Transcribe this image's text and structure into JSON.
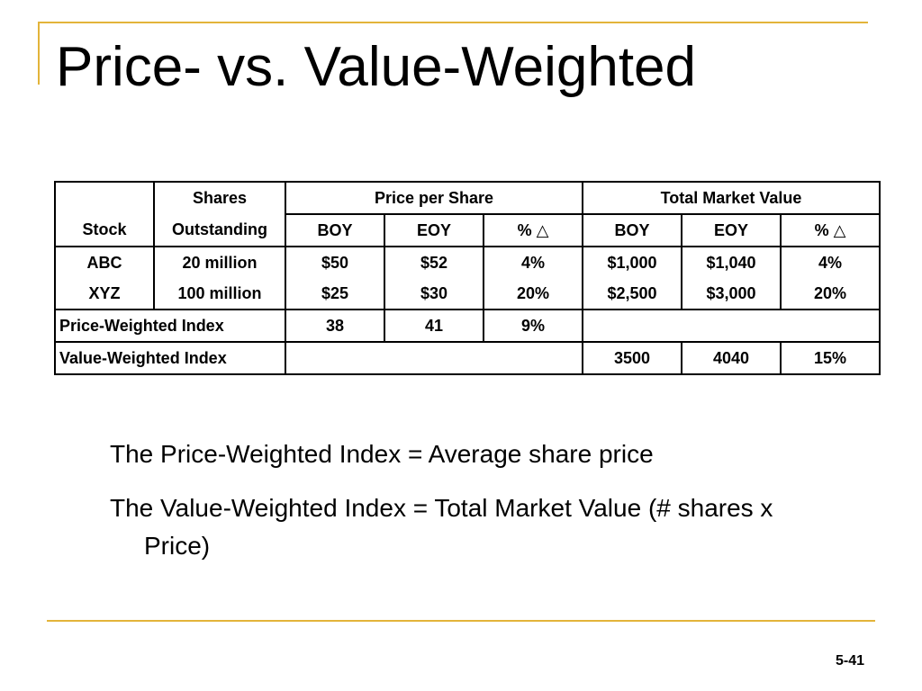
{
  "slide": {
    "title": "Price- vs. Value-Weighted",
    "page_number": "5-41",
    "accent_color": "#e3b43a"
  },
  "table": {
    "header": {
      "stock": "Stock",
      "shares_line1": "Shares",
      "shares_line2": "Outstanding",
      "price_group": "Price per Share",
      "value_group": "Total Market Value",
      "boy": "BOY",
      "eoy": "EOY",
      "pct_change": "% △"
    },
    "rows": [
      {
        "stock": "ABC",
        "shares": "20 million",
        "price_boy": "$50",
        "price_eoy": "$52",
        "price_pct": "4%",
        "value_boy": "$1,000",
        "value_eoy": "$1,040",
        "value_pct": "4%"
      },
      {
        "stock": "XYZ",
        "shares": "100 million",
        "price_boy": "$25",
        "price_eoy": "$30",
        "price_pct": "20%",
        "value_boy": "$2,500",
        "value_eoy": "$3,000",
        "value_pct": "20%"
      }
    ],
    "price_index": {
      "label": "Price-Weighted Index",
      "boy": "38",
      "eoy": "41",
      "pct": "9%"
    },
    "value_index": {
      "label": "Value-Weighted Index",
      "boy": "3500",
      "eoy": "4040",
      "pct": "15%"
    }
  },
  "bullets": [
    "The Price-Weighted Index = Average share price",
    "The Value-Weighted Index = Total Market Value (# shares x Price)"
  ]
}
